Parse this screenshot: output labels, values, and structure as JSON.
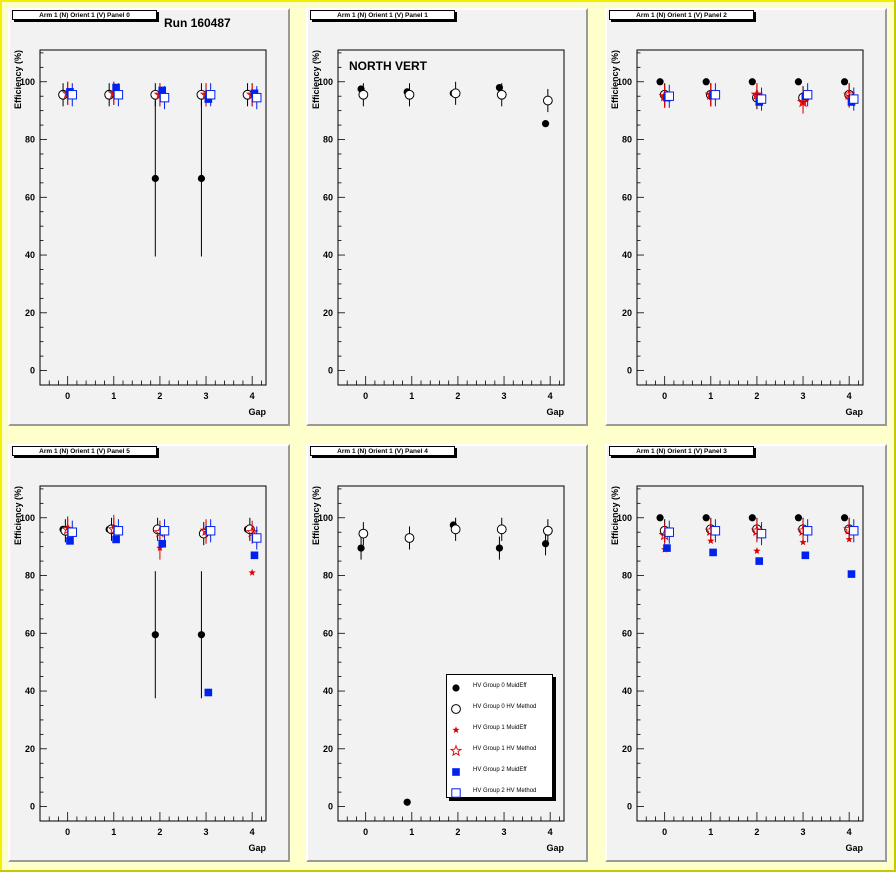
{
  "canvas_title": "Run 160487",
  "annotation": "NORTH VERT",
  "legend": [
    {
      "label": "HV Group 0 MuidEff",
      "marker": "filled-circle",
      "color": "#000000"
    },
    {
      "label": "HV Group 0 HV Method",
      "marker": "open-circle",
      "color": "#000000"
    },
    {
      "label": "HV Group 1 MuidEff",
      "marker": "filled-star",
      "color": "#dd0000"
    },
    {
      "label": "HV Group 1 HV Method",
      "marker": "open-star",
      "color": "#dd0000"
    },
    {
      "label": "HV Group 2 MuidEff",
      "marker": "filled-square",
      "color": "#0022ee"
    },
    {
      "label": "HV Group 2 HV Method",
      "marker": "open-square",
      "color": "#0022ee"
    }
  ],
  "chart_data": [
    {
      "type": "scatter",
      "title": "Arm 1 (N) Orient 1 (V) Panel 0",
      "xlabel": "Gap",
      "ylabel": "Efficiency (%)",
      "xticks": [
        0,
        1,
        2,
        3,
        4
      ],
      "yticks": [
        0,
        20,
        40,
        60,
        80,
        100
      ],
      "xlim": [
        -0.6,
        4.3
      ],
      "ylim": [
        -5,
        111
      ],
      "series": [
        {
          "name": "HV Group 0 MuidEff",
          "x": [
            -0.1,
            0.9,
            1.9,
            2.9,
            3.9
          ],
          "y": [
            96,
            96,
            66.5,
            66.5,
            96
          ],
          "err": [
            0,
            0,
            27,
            27,
            0
          ]
        },
        {
          "name": "HV Group 0 HV Method",
          "x": [
            -0.1,
            0.9,
            1.9,
            2.9,
            3.9
          ],
          "y": [
            95.5,
            95.5,
            95.5,
            95.5,
            95.5
          ],
          "err": [
            4,
            4,
            4,
            4,
            4
          ]
        },
        {
          "name": "HV Group 1 MuidEff",
          "x": [
            0,
            1,
            2,
            3,
            4
          ],
          "y": [
            96,
            96,
            95.5,
            95.5,
            95.5
          ],
          "err": [
            4,
            4,
            4,
            4,
            4
          ]
        },
        {
          "name": "HV Group 1 HV Method",
          "x": [
            0,
            1,
            2,
            3,
            4
          ],
          "y": [
            96,
            96,
            95.5,
            95.5,
            95.5
          ],
          "err": [
            4,
            4,
            4,
            4,
            4
          ]
        },
        {
          "name": "HV Group 2 MuidEff",
          "x": [
            0.05,
            1.05,
            2.05,
            3.05,
            4.05
          ],
          "y": [
            96.5,
            98,
            97,
            94,
            96
          ],
          "err": [
            0,
            0,
            0,
            0,
            0
          ]
        },
        {
          "name": "HV Group 2 HV Method",
          "x": [
            0.1,
            1.1,
            2.1,
            3.1,
            4.1
          ],
          "y": [
            95.5,
            95.5,
            94.5,
            95.5,
            94.5
          ],
          "err": [
            4,
            4,
            4,
            4,
            4
          ]
        }
      ]
    },
    {
      "type": "scatter",
      "title": "Arm 1 (N) Orient 1 (V) Panel 1",
      "xlabel": "Gap",
      "ylabel": "Efficiency (%)",
      "xticks": [
        0,
        1,
        2,
        3,
        4
      ],
      "yticks": [
        0,
        20,
        40,
        60,
        80,
        100
      ],
      "xlim": [
        -0.6,
        4.3
      ],
      "ylim": [
        -5,
        111
      ],
      "series": [
        {
          "name": "HV Group 0 MuidEff",
          "x": [
            -0.1,
            0.9,
            1.9,
            2.9,
            3.9
          ],
          "y": [
            97.5,
            96.5,
            96,
            98,
            85.5
          ],
          "err": [
            0,
            0,
            0,
            0,
            0
          ]
        },
        {
          "name": "HV Group 0 HV Method",
          "x": [
            -0.05,
            0.95,
            1.95,
            2.95,
            3.95
          ],
          "y": [
            95.5,
            95.5,
            96,
            95.5,
            93.5
          ],
          "err": [
            4,
            4,
            4,
            4,
            4
          ]
        },
        {
          "name": "HV Group 1 MuidEff",
          "x": [],
          "y": [],
          "err": []
        },
        {
          "name": "HV Group 1 HV Method",
          "x": [],
          "y": [],
          "err": []
        },
        {
          "name": "HV Group 2 MuidEff",
          "x": [],
          "y": [],
          "err": []
        },
        {
          "name": "HV Group 2 HV Method",
          "x": [],
          "y": [],
          "err": []
        }
      ]
    },
    {
      "type": "scatter",
      "title": "Arm 1 (N) Orient 1 (V) Panel 2",
      "xlabel": "Gap",
      "ylabel": "Efficiency (%)",
      "xticks": [
        0,
        1,
        2,
        3,
        4
      ],
      "yticks": [
        0,
        20,
        40,
        60,
        80,
        100
      ],
      "xlim": [
        -0.6,
        4.3
      ],
      "ylim": [
        -5,
        111
      ],
      "series": [
        {
          "name": "HV Group 0 MuidEff",
          "x": [
            -0.1,
            0.9,
            1.9,
            2.9,
            3.9
          ],
          "y": [
            100,
            100,
            100,
            100,
            100
          ],
          "err": [
            0,
            0,
            0,
            0,
            0
          ]
        },
        {
          "name": "HV Group 0 HV Method",
          "x": [
            0,
            1,
            2,
            3,
            4
          ],
          "y": [
            95.5,
            95.5,
            94.5,
            94.5,
            95.5
          ],
          "err": [
            4,
            4,
            4,
            4,
            4
          ]
        },
        {
          "name": "HV Group 1 MuidEff",
          "x": [
            0,
            1,
            2,
            3,
            4
          ],
          "y": [
            95,
            95.5,
            95.5,
            93,
            95
          ],
          "err": [
            4,
            4,
            4,
            4,
            4
          ]
        },
        {
          "name": "HV Group 1 HV Method",
          "x": [
            0,
            1,
            2,
            3,
            4
          ],
          "y": [
            95,
            95.5,
            95.5,
            93,
            95.5
          ],
          "err": [
            4,
            4,
            4,
            4,
            4
          ]
        },
        {
          "name": "HV Group 2 MuidEff",
          "x": [
            0.05,
            1.05,
            2.05,
            3.05,
            4.05
          ],
          "y": [
            94.5,
            95.5,
            93,
            95,
            93
          ],
          "err": [
            0,
            0,
            0,
            0,
            0
          ]
        },
        {
          "name": "HV Group 2 HV Method",
          "x": [
            0.1,
            1.1,
            2.1,
            3.1,
            4.1
          ],
          "y": [
            95,
            95.5,
            94,
            95.5,
            94
          ],
          "err": [
            4,
            4,
            4,
            4,
            4
          ]
        }
      ]
    },
    {
      "type": "scatter",
      "title": "Arm 1 (N) Orient 1 (V) Panel 5",
      "xlabel": "Gap",
      "ylabel": "Efficiency (%)",
      "xticks": [
        0,
        1,
        2,
        3,
        4
      ],
      "yticks": [
        0,
        20,
        40,
        60,
        80,
        100
      ],
      "xlim": [
        -0.6,
        4.3
      ],
      "ylim": [
        -5,
        111
      ],
      "series": [
        {
          "name": "HV Group 0 MuidEff",
          "x": [
            -0.1,
            0.9,
            1.9,
            2.9,
            3.9
          ],
          "y": [
            96,
            96,
            59.5,
            59.5,
            96
          ],
          "err": [
            0,
            0,
            22,
            22,
            0
          ]
        },
        {
          "name": "HV Group 0 HV Method",
          "x": [
            -0.05,
            0.95,
            1.95,
            2.95,
            3.95
          ],
          "y": [
            95.5,
            96,
            96,
            94.5,
            96
          ],
          "err": [
            4,
            4,
            4,
            4,
            4
          ]
        },
        {
          "name": "HV Group 1 MuidEff",
          "x": [
            0,
            1,
            2,
            3,
            4
          ],
          "y": [
            96.5,
            97,
            89.5,
            95,
            81
          ],
          "err": [
            4,
            4,
            4,
            4,
            0
          ]
        },
        {
          "name": "HV Group 1 HV Method",
          "x": [
            0,
            1,
            2,
            3,
            4
          ],
          "y": [
            96,
            96,
            95,
            95.5,
            95
          ],
          "err": [
            4,
            4,
            4,
            4,
            4
          ]
        },
        {
          "name": "HV Group 2 MuidEff",
          "x": [
            0.05,
            1.05,
            2.05,
            3.05,
            4.05
          ],
          "y": [
            92,
            92.5,
            91,
            39.5,
            87
          ],
          "err": [
            0,
            0,
            0,
            0,
            0
          ]
        },
        {
          "name": "HV Group 2 HV Method",
          "x": [
            0.1,
            1.1,
            2.1,
            3.1,
            4.1
          ],
          "y": [
            95,
            95.5,
            95.5,
            95.5,
            93
          ],
          "err": [
            4,
            4,
            4,
            4,
            4
          ]
        }
      ]
    },
    {
      "type": "scatter",
      "title": "Arm 1 (N) Orient 1 (V) Panel 4",
      "xlabel": "Gap",
      "ylabel": "Efficiency (%)",
      "xticks": [
        0,
        1,
        2,
        3,
        4
      ],
      "yticks": [
        0,
        20,
        40,
        60,
        80,
        100
      ],
      "xlim": [
        -0.6,
        4.3
      ],
      "ylim": [
        -5,
        111
      ],
      "series": [
        {
          "name": "HV Group 0 MuidEff",
          "x": [
            -0.1,
            0.9,
            1.9,
            2.9,
            3.9
          ],
          "y": [
            89.5,
            1.5,
            97.5,
            89.5,
            91
          ],
          "err": [
            4,
            0,
            0,
            4,
            4
          ]
        },
        {
          "name": "HV Group 0 HV Method",
          "x": [
            -0.05,
            0.95,
            1.95,
            2.95,
            3.95
          ],
          "y": [
            94.5,
            93,
            96,
            96,
            95.5
          ],
          "err": [
            4,
            4,
            4,
            4,
            4
          ]
        },
        {
          "name": "HV Group 1 MuidEff",
          "x": [],
          "y": [],
          "err": []
        },
        {
          "name": "HV Group 1 HV Method",
          "x": [],
          "y": [],
          "err": []
        },
        {
          "name": "HV Group 2 MuidEff",
          "x": [],
          "y": [],
          "err": []
        },
        {
          "name": "HV Group 2 HV Method",
          "x": [],
          "y": [],
          "err": []
        }
      ]
    },
    {
      "type": "scatter",
      "title": "Arm 1 (N) Orient 1 (V) Panel 3",
      "xlabel": "Gap",
      "ylabel": "Efficiency (%)",
      "xticks": [
        0,
        1,
        2,
        3,
        4
      ],
      "yticks": [
        0,
        20,
        40,
        60,
        80,
        100
      ],
      "xlim": [
        -0.6,
        4.3
      ],
      "ylim": [
        -5,
        111
      ],
      "series": [
        {
          "name": "HV Group 0 MuidEff",
          "x": [
            -0.1,
            0.9,
            1.9,
            2.9,
            3.9
          ],
          "y": [
            100,
            100,
            100,
            100,
            100
          ],
          "err": [
            0,
            0,
            0,
            0,
            0
          ]
        },
        {
          "name": "HV Group 0 HV Method",
          "x": [
            0,
            1,
            2,
            3,
            4
          ],
          "y": [
            95.5,
            96,
            96,
            96,
            96
          ],
          "err": [
            4,
            4,
            4,
            4,
            4
          ]
        },
        {
          "name": "HV Group 1 MuidEff",
          "x": [
            0,
            1,
            2,
            3,
            4
          ],
          "y": [
            89,
            92,
            88.5,
            91.5,
            92.5
          ],
          "err": [
            0,
            0,
            0,
            0,
            0
          ]
        },
        {
          "name": "HV Group 1 HV Method",
          "x": [
            0,
            1,
            2,
            3,
            4
          ],
          "y": [
            94,
            95.5,
            95.5,
            95.5,
            96
          ],
          "err": [
            4,
            4,
            4,
            4,
            4
          ]
        },
        {
          "name": "HV Group 2 MuidEff",
          "x": [
            0.05,
            1.05,
            2.05,
            3.05,
            4.05
          ],
          "y": [
            89.5,
            88,
            85,
            87,
            80.5
          ],
          "err": [
            0,
            0,
            0,
            0,
            0
          ]
        },
        {
          "name": "HV Group 2 HV Method",
          "x": [
            0.1,
            1.1,
            2.1,
            3.1,
            4.1
          ],
          "y": [
            95,
            95.5,
            94.5,
            95.5,
            95.5
          ],
          "err": [
            4,
            4,
            4,
            4,
            4
          ]
        }
      ]
    }
  ]
}
